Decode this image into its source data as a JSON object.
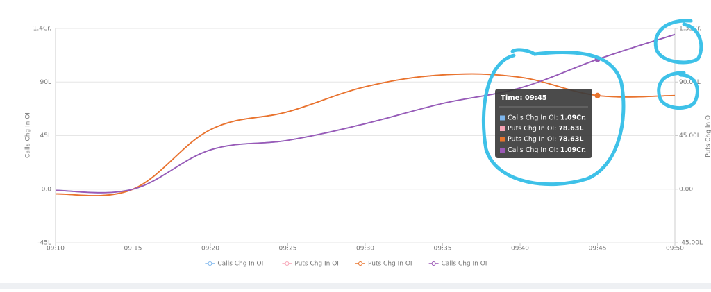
{
  "chart_data": {
    "type": "line",
    "y_label": "Calls Chg In OI",
    "y2_label": "Puts Chg In OI",
    "x": [
      "09:10",
      "09:15",
      "09:20",
      "09:25",
      "09:30",
      "09:35",
      "09:40",
      "09:45",
      "09:50"
    ],
    "series": [
      {
        "name": "Calls Chg In OI",
        "color": "#7cb5ec",
        "values": [
          -1,
          0,
          33,
          41,
          55,
          72,
          85,
          109,
          130
        ]
      },
      {
        "name": "Puts Chg In OI",
        "color": "#f7a3b5",
        "axis": "y2",
        "values": [
          -4,
          0,
          50,
          65,
          86,
          96,
          94,
          78.63,
          78.63
        ]
      },
      {
        "name": "Puts Chg In OI",
        "color": "#e8742c",
        "axis": "y2",
        "values": [
          -4,
          0,
          50,
          65,
          86,
          96,
          94,
          78.63,
          78.63
        ]
      },
      {
        "name": "Calls Chg In OI",
        "color": "#9b59b6",
        "values": [
          -1,
          0,
          33,
          41,
          55,
          72,
          85,
          109,
          130
        ]
      }
    ],
    "ylim": [
      -45,
      135
    ],
    "yticks": [
      {
        "value": -45,
        "label": "-45L"
      },
      {
        "value": 0,
        "label": "0.0"
      },
      {
        "value": 45,
        "label": "45L"
      },
      {
        "value": 90,
        "label": "90L"
      },
      {
        "value": 135,
        "label": "1.4Cr."
      }
    ],
    "y2lim": [
      -45,
      135
    ],
    "y2ticks": [
      {
        "value": -45,
        "label": "-45.00L"
      },
      {
        "value": 0,
        "label": "0.00"
      },
      {
        "value": 45,
        "label": "45.00L"
      },
      {
        "value": 90,
        "label": "90.00L"
      },
      {
        "value": 135,
        "label": "1.35Cr."
      }
    ],
    "grid": true,
    "legend": "bottom",
    "tooltip": {
      "title": "Time: 09:45",
      "index": 7,
      "rows": [
        {
          "label": "Calls Chg In OI:",
          "value": "1.09Cr."
        },
        {
          "label": "Puts Chg In OI:",
          "value": "78.63L"
        },
        {
          "label": "Puts Chg In OI:",
          "value": "78.63L"
        },
        {
          "label": "Calls Chg In OI:",
          "value": "1.09Cr."
        }
      ]
    }
  }
}
